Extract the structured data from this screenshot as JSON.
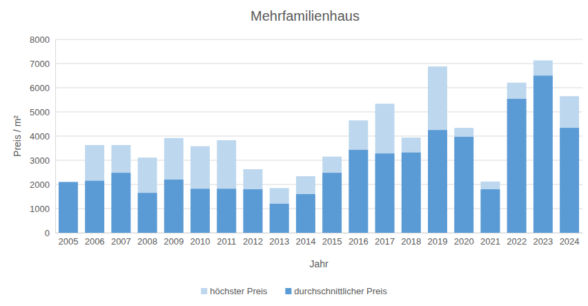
{
  "chart_data": {
    "type": "bar",
    "title": "Mehrfamilienhaus",
    "x_label": "Jahr",
    "y_label": "Preis / m²",
    "categories": [
      "2005",
      "2006",
      "2007",
      "2008",
      "2009",
      "2010",
      "2011",
      "2012",
      "2013",
      "2014",
      "2015",
      "2016",
      "2017",
      "2018",
      "2019",
      "2020",
      "2021",
      "2022",
      "2023",
      "2024"
    ],
    "series": [
      {
        "name": "höchster Preis",
        "color": "#bdd7ee",
        "values": [
          2100,
          3630,
          3630,
          3110,
          3920,
          3580,
          3830,
          2630,
          1850,
          2340,
          3150,
          4650,
          5340,
          3940,
          6880,
          4340,
          2120,
          6210,
          7130,
          5650
        ]
      },
      {
        "name": "durchschnittlicher Preis",
        "color": "#5b9bd5",
        "values": [
          2100,
          2150,
          2480,
          1650,
          2200,
          1820,
          1820,
          1800,
          1200,
          1600,
          2480,
          3430,
          3280,
          3320,
          4250,
          3970,
          1800,
          5540,
          6500,
          4340
        ]
      }
    ],
    "ylim": [
      0,
      8000
    ],
    "yticks": [
      0,
      1000,
      2000,
      3000,
      4000,
      5000,
      6000,
      7000,
      8000
    ],
    "grid": true,
    "legend": "bottom"
  }
}
